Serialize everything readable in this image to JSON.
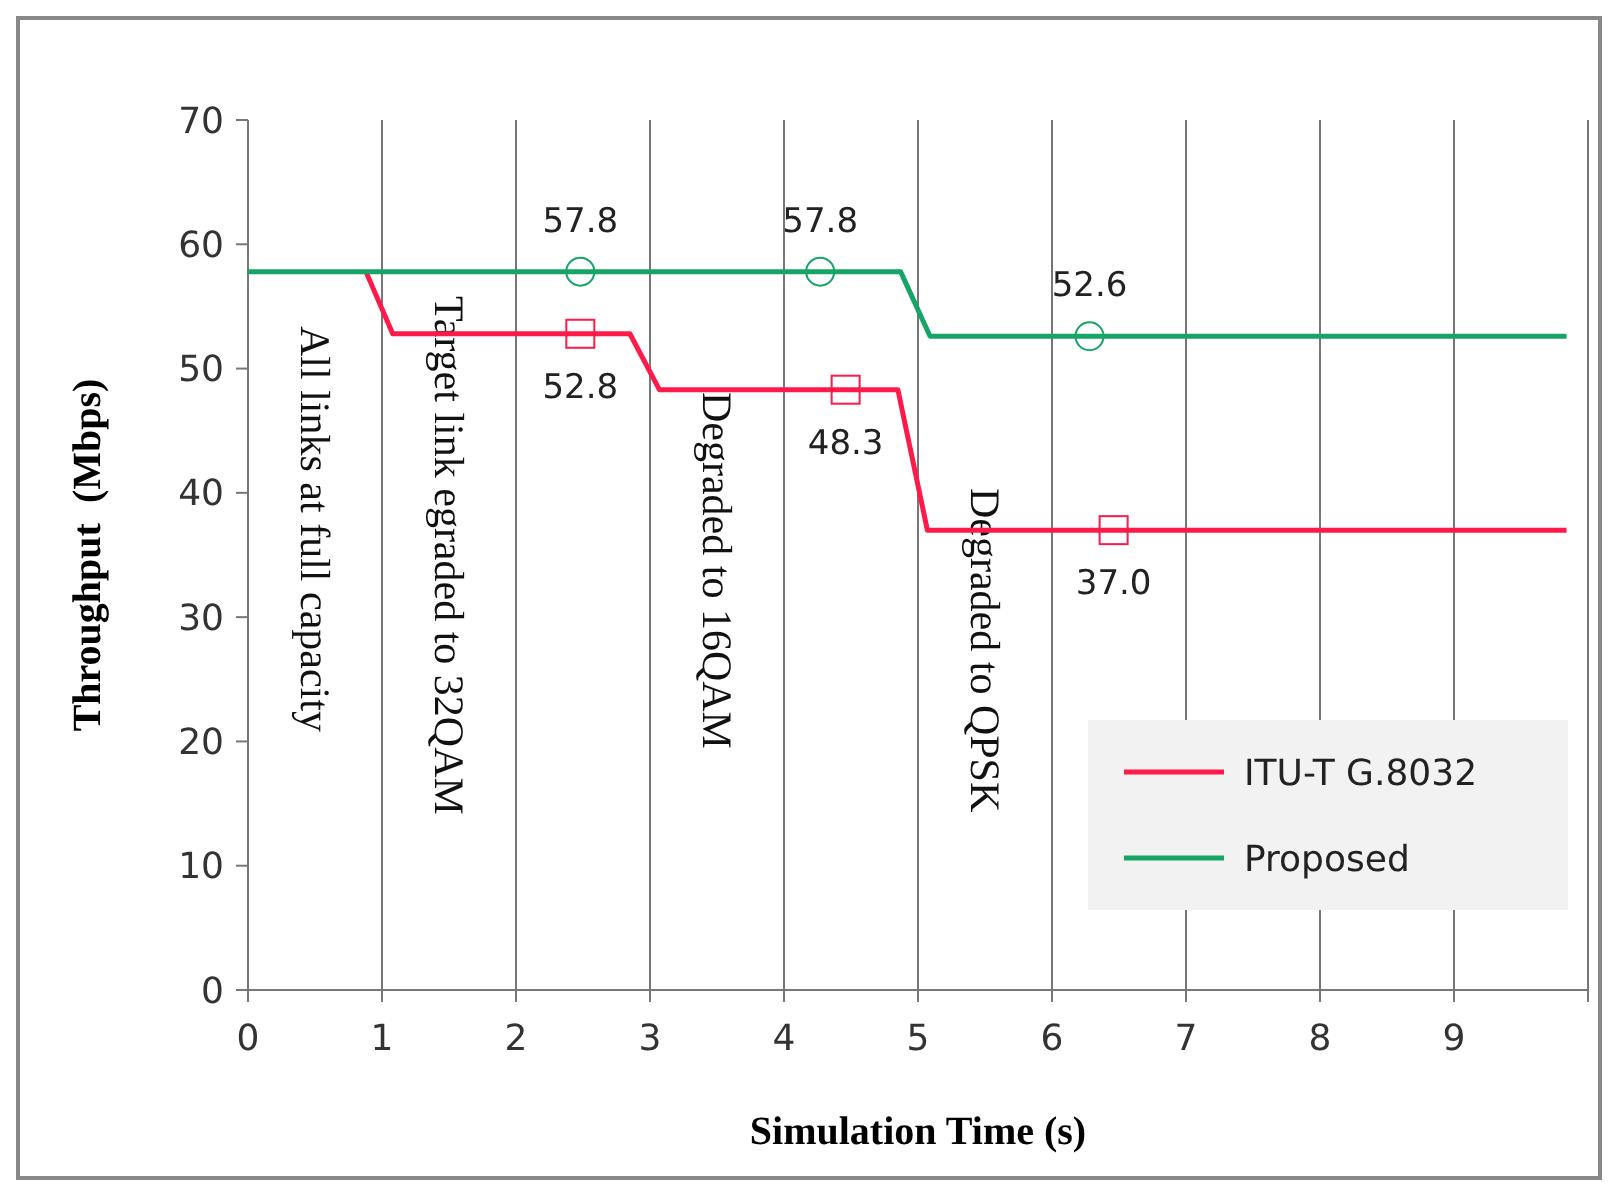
{
  "chart_data": {
    "type": "line",
    "xlabel": "Simulation Time (s)",
    "ylabel": "Throughput  (Mbps)",
    "xlim": [
      0,
      10
    ],
    "xticks": [
      0,
      1,
      2,
      3,
      4,
      5,
      6,
      7,
      8,
      9,
      {
        "value": 10,
        "label": null
      }
    ],
    "ylim": [
      0,
      70
    ],
    "yticks": [
      0,
      10,
      20,
      30,
      40,
      50,
      60,
      70
    ],
    "grid": "x",
    "legend": "bottom right",
    "annotations": [
      "All links at full capacity",
      "Target link egraded to 32QAM",
      "Degraded to 16QAM",
      "Degraded to QPSK"
    ],
    "series": [
      {
        "name": "ITU-T G.8032",
        "color": "#ff1a4a",
        "x": [
          0.88,
          1.08,
          2.85,
          3.07,
          4.85,
          5.07,
          9.84
        ],
        "values": [
          57.8,
          52.8,
          52.8,
          48.3,
          48.3,
          37.0,
          37.0
        ]
      },
      {
        "name": "Proposed",
        "color": "#16a566",
        "x": [
          0,
          4.87,
          5.09,
          9.84
        ],
        "values": [
          57.8,
          57.8,
          52.6,
          52.6
        ]
      },
      {
        "type": "scatter",
        "color": "#ff1a4a",
        "marker": "square",
        "x": [
          2.48,
          4.46,
          6.46
        ],
        "values": [
          52.8,
          48.3,
          37.0
        ],
        "value_labels": [
          "52.8",
          "48.3",
          "37.0"
        ]
      },
      {
        "type": "scatter",
        "color": "#16a566",
        "marker": "circle",
        "x": [
          2.48,
          4.27,
          6.28
        ],
        "values": [
          57.8,
          57.8,
          52.6
        ],
        "value_labels": [
          "57.8",
          "57.8",
          "52.6"
        ]
      }
    ]
  }
}
